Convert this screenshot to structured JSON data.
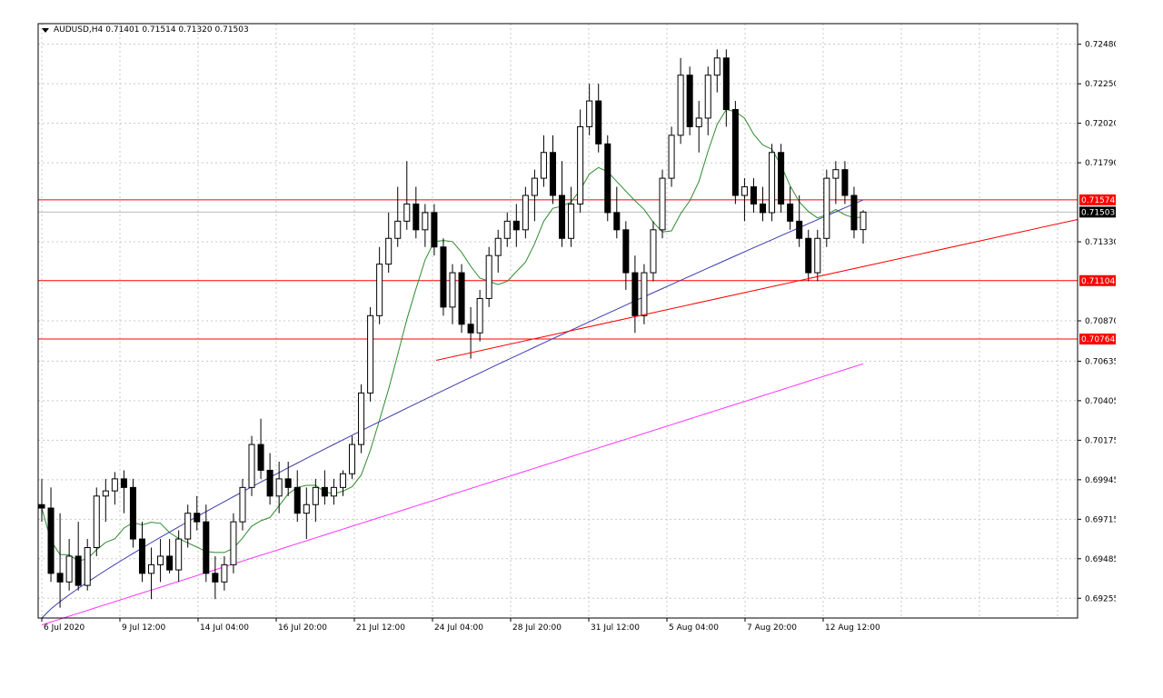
{
  "header": {
    "symbol": "AUDUSD,H4",
    "ohlc": "0.71401 0.71514 0.71320 0.71503"
  },
  "colors": {
    "bull_fill": "#ffffff",
    "bear_fill": "#000000",
    "ma_fast": "#2e8b2e",
    "ma_mid": "#3b3bb0",
    "ma_slow": "#ff33ff",
    "level_line": "#ff0000",
    "grid": "#c8c8c8"
  },
  "chart_data": {
    "type": "candlestick",
    "symbol": "AUDUSD",
    "timeframe": "H4",
    "ylim": [
      0.6914,
      0.726
    ],
    "y_ticks": [
      "0.72480",
      "0.72250",
      "0.72020",
      "0.71790",
      "0.71330",
      "0.70870",
      "0.70635",
      "0.70405",
      "0.70175",
      "0.69945",
      "0.69715",
      "0.69485",
      "0.69255"
    ],
    "x_ticks": [
      "6 Jul 2020",
      "9 Jul 12:00",
      "14 Jul 04:00",
      "16 Jul 20:00",
      "21 Jul 12:00",
      "24 Jul 04:00",
      "28 Jul 20:00",
      "31 Jul 12:00",
      "5 Aug 04:00",
      "7 Aug 20:00",
      "12 Aug 12:00"
    ],
    "price_tags": [
      {
        "label": "0.71574",
        "value": 0.71574,
        "color": "#ff0000"
      },
      {
        "label": "0.71503",
        "value": 0.71503,
        "color": "#000000"
      },
      {
        "label": "0.71104",
        "value": 0.71104,
        "color": "#ff0000"
      },
      {
        "label": "0.70764",
        "value": 0.70764,
        "color": "#ff0000"
      }
    ],
    "horizontal_levels": [
      0.71574,
      0.71104,
      0.70764
    ],
    "trendline": {
      "from": {
        "x": "24 Jul 04:00",
        "y": 0.7064
      },
      "to": {
        "x": "after 12 Aug",
        "y": 0.7146
      }
    },
    "candles": [
      [
        0.698,
        0.6995,
        0.697,
        0.6978
      ],
      [
        0.6978,
        0.699,
        0.6935,
        0.694
      ],
      [
        0.694,
        0.6975,
        0.692,
        0.6935
      ],
      [
        0.6935,
        0.696,
        0.693,
        0.695
      ],
      [
        0.695,
        0.697,
        0.693,
        0.6933
      ],
      [
        0.6933,
        0.696,
        0.693,
        0.6955
      ],
      [
        0.6955,
        0.699,
        0.695,
        0.6985
      ],
      [
        0.6985,
        0.6995,
        0.697,
        0.6988
      ],
      [
        0.6988,
        0.6999,
        0.698,
        0.6995
      ],
      [
        0.6995,
        0.7,
        0.6975,
        0.699
      ],
      [
        0.699,
        0.6995,
        0.6955,
        0.696
      ],
      [
        0.696,
        0.697,
        0.6935,
        0.694
      ],
      [
        0.694,
        0.6955,
        0.6925,
        0.6945
      ],
      [
        0.6945,
        0.696,
        0.6935,
        0.695
      ],
      [
        0.695,
        0.696,
        0.694,
        0.6942
      ],
      [
        0.6942,
        0.6965,
        0.6935,
        0.696
      ],
      [
        0.696,
        0.698,
        0.6955,
        0.6975
      ],
      [
        0.6975,
        0.6985,
        0.6965,
        0.697
      ],
      [
        0.697,
        0.698,
        0.6935,
        0.694
      ],
      [
        0.694,
        0.695,
        0.6925,
        0.6935
      ],
      [
        0.6935,
        0.695,
        0.693,
        0.6945
      ],
      [
        0.6945,
        0.6975,
        0.694,
        0.697
      ],
      [
        0.697,
        0.6995,
        0.6965,
        0.699
      ],
      [
        0.699,
        0.702,
        0.6985,
        0.7015
      ],
      [
        0.7015,
        0.703,
        0.6995,
        0.7
      ],
      [
        0.7,
        0.701,
        0.698,
        0.6985
      ],
      [
        0.6985,
        0.7005,
        0.6975,
        0.6995
      ],
      [
        0.6995,
        0.7005,
        0.6985,
        0.699
      ],
      [
        0.699,
        0.7,
        0.697,
        0.6975
      ],
      [
        0.6975,
        0.699,
        0.696,
        0.698
      ],
      [
        0.698,
        0.6995,
        0.697,
        0.699
      ],
      [
        0.699,
        0.7,
        0.698,
        0.6985
      ],
      [
        0.6985,
        0.6995,
        0.698,
        0.699
      ],
      [
        0.699,
        0.7,
        0.6985,
        0.6998
      ],
      [
        0.6998,
        0.702,
        0.6995,
        0.7015
      ],
      [
        0.7015,
        0.705,
        0.701,
        0.7045
      ],
      [
        0.7045,
        0.7095,
        0.704,
        0.709
      ],
      [
        0.709,
        0.713,
        0.7085,
        0.712
      ],
      [
        0.712,
        0.715,
        0.7115,
        0.7135
      ],
      [
        0.7135,
        0.7165,
        0.713,
        0.7145
      ],
      [
        0.7145,
        0.718,
        0.714,
        0.7155
      ],
      [
        0.7155,
        0.7165,
        0.7135,
        0.714
      ],
      [
        0.714,
        0.7155,
        0.713,
        0.715
      ],
      [
        0.715,
        0.7155,
        0.7125,
        0.713
      ],
      [
        0.713,
        0.7135,
        0.709,
        0.7095
      ],
      [
        0.7095,
        0.712,
        0.7085,
        0.7115
      ],
      [
        0.7115,
        0.712,
        0.708,
        0.7085
      ],
      [
        0.7085,
        0.7095,
        0.7065,
        0.708
      ],
      [
        0.708,
        0.7105,
        0.7075,
        0.71
      ],
      [
        0.71,
        0.713,
        0.7095,
        0.7125
      ],
      [
        0.7125,
        0.714,
        0.7115,
        0.7135
      ],
      [
        0.7135,
        0.715,
        0.713,
        0.7145
      ],
      [
        0.7145,
        0.7155,
        0.713,
        0.714
      ],
      [
        0.714,
        0.7165,
        0.7135,
        0.716
      ],
      [
        0.716,
        0.7175,
        0.7145,
        0.717
      ],
      [
        0.717,
        0.7195,
        0.7165,
        0.7185
      ],
      [
        0.7185,
        0.7195,
        0.7155,
        0.716
      ],
      [
        0.716,
        0.718,
        0.713,
        0.7135
      ],
      [
        0.7135,
        0.7165,
        0.713,
        0.7155
      ],
      [
        0.7155,
        0.721,
        0.715,
        0.72
      ],
      [
        0.72,
        0.7225,
        0.7195,
        0.7215
      ],
      [
        0.7215,
        0.7225,
        0.7185,
        0.719
      ],
      [
        0.719,
        0.7195,
        0.7145,
        0.715
      ],
      [
        0.715,
        0.7165,
        0.7135,
        0.714
      ],
      [
        0.714,
        0.7145,
        0.7105,
        0.7115
      ],
      [
        0.7115,
        0.7125,
        0.708,
        0.709
      ],
      [
        0.709,
        0.712,
        0.7085,
        0.7115
      ],
      [
        0.7115,
        0.7145,
        0.711,
        0.714
      ],
      [
        0.714,
        0.7175,
        0.7135,
        0.717
      ],
      [
        0.717,
        0.72,
        0.7165,
        0.7195
      ],
      [
        0.7195,
        0.724,
        0.719,
        0.723
      ],
      [
        0.723,
        0.7235,
        0.7195,
        0.72
      ],
      [
        0.72,
        0.7215,
        0.7185,
        0.7205
      ],
      [
        0.7205,
        0.7235,
        0.7195,
        0.723
      ],
      [
        0.723,
        0.7245,
        0.722,
        0.724
      ],
      [
        0.724,
        0.7245,
        0.72,
        0.721
      ],
      [
        0.721,
        0.7215,
        0.7155,
        0.716
      ],
      [
        0.716,
        0.717,
        0.7145,
        0.7165
      ],
      [
        0.7165,
        0.717,
        0.715,
        0.7155
      ],
      [
        0.7155,
        0.7165,
        0.7145,
        0.715
      ],
      [
        0.715,
        0.719,
        0.7145,
        0.7185
      ],
      [
        0.7185,
        0.719,
        0.715,
        0.7155
      ],
      [
        0.7155,
        0.7165,
        0.714,
        0.7145
      ],
      [
        0.7145,
        0.716,
        0.713,
        0.7135
      ],
      [
        0.7135,
        0.714,
        0.711,
        0.7115
      ],
      [
        0.7115,
        0.714,
        0.711,
        0.7135
      ],
      [
        0.7135,
        0.7175,
        0.713,
        0.717
      ],
      [
        0.717,
        0.718,
        0.7155,
        0.7175
      ],
      [
        0.7175,
        0.718,
        0.7155,
        0.716
      ],
      [
        0.716,
        0.7165,
        0.7135,
        0.714
      ],
      [
        0.71401,
        0.71514,
        0.7132,
        0.71503
      ]
    ],
    "ma_fast_label": "",
    "ma_mid_label": "",
    "ma_slow_label": ""
  }
}
